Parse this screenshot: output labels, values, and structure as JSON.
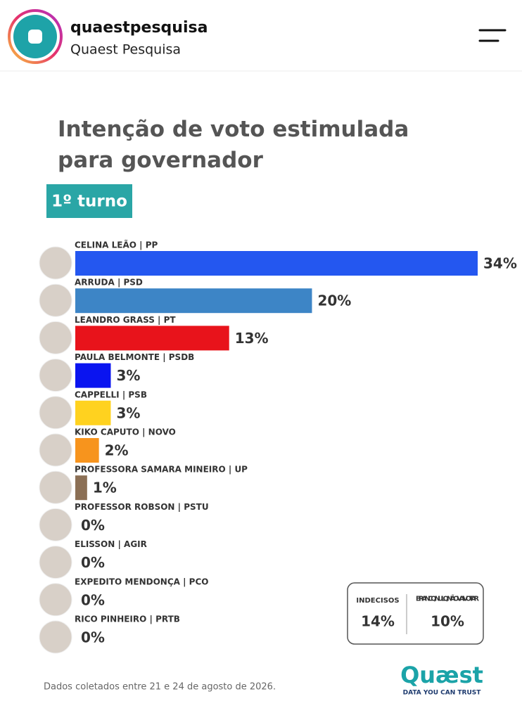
{
  "header": {
    "username": "quaestpesquisa",
    "display_name": "Quaest Pesquisa"
  },
  "chart_data": {
    "type": "bar",
    "orientation": "horizontal",
    "title": "Intenção de voto estimulada para governador",
    "subtitle": "1º turno",
    "categories": [
      "CELINA LEÃO | PP",
      "ARRUDA | PSD",
      "LEANDRO GRASS | PT",
      "PAULA BELMONTE | PSDB",
      "CAPPELLI | PSB",
      "KIKO CAPUTO | NOVO",
      "PROFESSORA SAMARA MINEIRO | UP",
      "PROFESSOR ROBSON | PSTU",
      "ELISSON | AGIR",
      "EXPEDITO MENDONÇA | PCO",
      "RICO PINHEIRO | PRTB"
    ],
    "values": [
      34,
      20,
      13,
      3,
      3,
      2,
      1,
      0,
      0,
      0,
      0
    ],
    "value_labels": [
      "34%",
      "20%",
      "13%",
      "3%",
      "3%",
      "2%",
      "1%",
      "0%",
      "0%",
      "0%",
      "0%"
    ],
    "colors": [
      "#2457f0",
      "#3d85c6",
      "#e8131b",
      "#0a14f0",
      "#ffd21f",
      "#f7941d",
      "#8b6f55",
      "#888888",
      "#888888",
      "#888888",
      "#888888"
    ],
    "summary": [
      {
        "label": "INDECISOS",
        "value": 14,
        "value_label": "14%"
      },
      {
        "label": "BRANCO/NULO/ NÃO VAI VOTAR",
        "value": 10,
        "value_label": "10%"
      }
    ],
    "note": "Dados coletados entre 21 e 24 de agosto de 2026."
  },
  "brand": {
    "logo": "Quæst",
    "tagline": "DATA YOU CAN TRUST"
  }
}
